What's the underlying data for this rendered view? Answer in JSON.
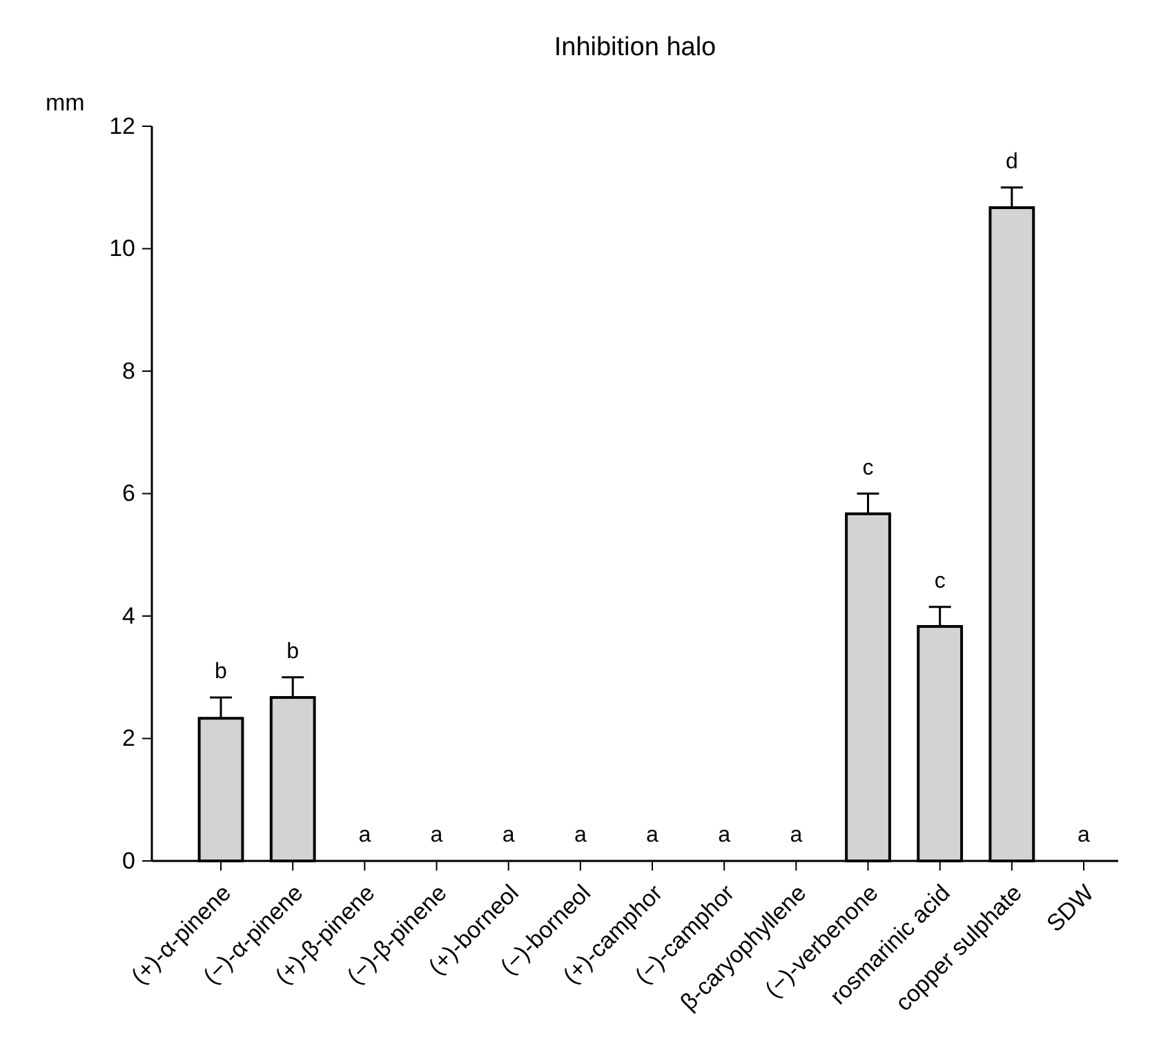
{
  "chart_data": {
    "type": "bar",
    "title": "Inhibition halo",
    "ylabel": "mm",
    "categories": [
      "(+)-α-pinene",
      "(−)-α-pinene",
      "(+)-β-pinene",
      "(−)-β-pinene",
      "(+)-borneol",
      "(−)-borneol",
      "(+)-camphor",
      "(−)-camphor",
      "β-caryophyllene",
      "(−)-verbenone",
      "rosmarinic acid",
      "copper sulphate",
      "SDW"
    ],
    "values": [
      2.33,
      2.67,
      0,
      0,
      0,
      0,
      0,
      0,
      0,
      5.67,
      3.83,
      10.67,
      0
    ],
    "errors": [
      [
        2.33,
        2.67
      ],
      [
        2.67,
        3.0
      ],
      null,
      null,
      null,
      null,
      null,
      null,
      null,
      [
        5.67,
        6.0
      ],
      [
        3.83,
        4.15
      ],
      [
        10.67,
        11.0
      ],
      null
    ],
    "color": "#d3d3d3",
    "ylim": [
      0,
      12
    ],
    "yticks": [
      0,
      2,
      4,
      6,
      8,
      10,
      12
    ],
    "grid": false,
    "annotations": [
      {
        "text": "b",
        "x": "(+)-α-pinene",
        "y": 2.67
      },
      {
        "text": "b",
        "x": "(−)-α-pinene",
        "y": 3.0
      },
      {
        "text": "a",
        "x": "(+)-β-pinene",
        "y": 0
      },
      {
        "text": "a",
        "x": "(−)-β-pinene",
        "y": 0
      },
      {
        "text": "a",
        "x": "(+)-borneol",
        "y": 0
      },
      {
        "text": "a",
        "x": "(−)-borneol",
        "y": 0
      },
      {
        "text": "a",
        "x": "(+)-camphor",
        "y": 0
      },
      {
        "text": "a",
        "x": "(−)-camphor",
        "y": 0
      },
      {
        "text": "a",
        "x": "β-caryophyllene",
        "y": 0
      },
      {
        "text": "c",
        "x": "(−)-verbenone",
        "y": 6.0
      },
      {
        "text": "c",
        "x": "rosmarinic acid",
        "y": 4.15
      },
      {
        "text": "d",
        "x": "copper sulphate",
        "y": 11.0
      },
      {
        "text": "a",
        "x": "SDW",
        "y": 0
      }
    ]
  }
}
